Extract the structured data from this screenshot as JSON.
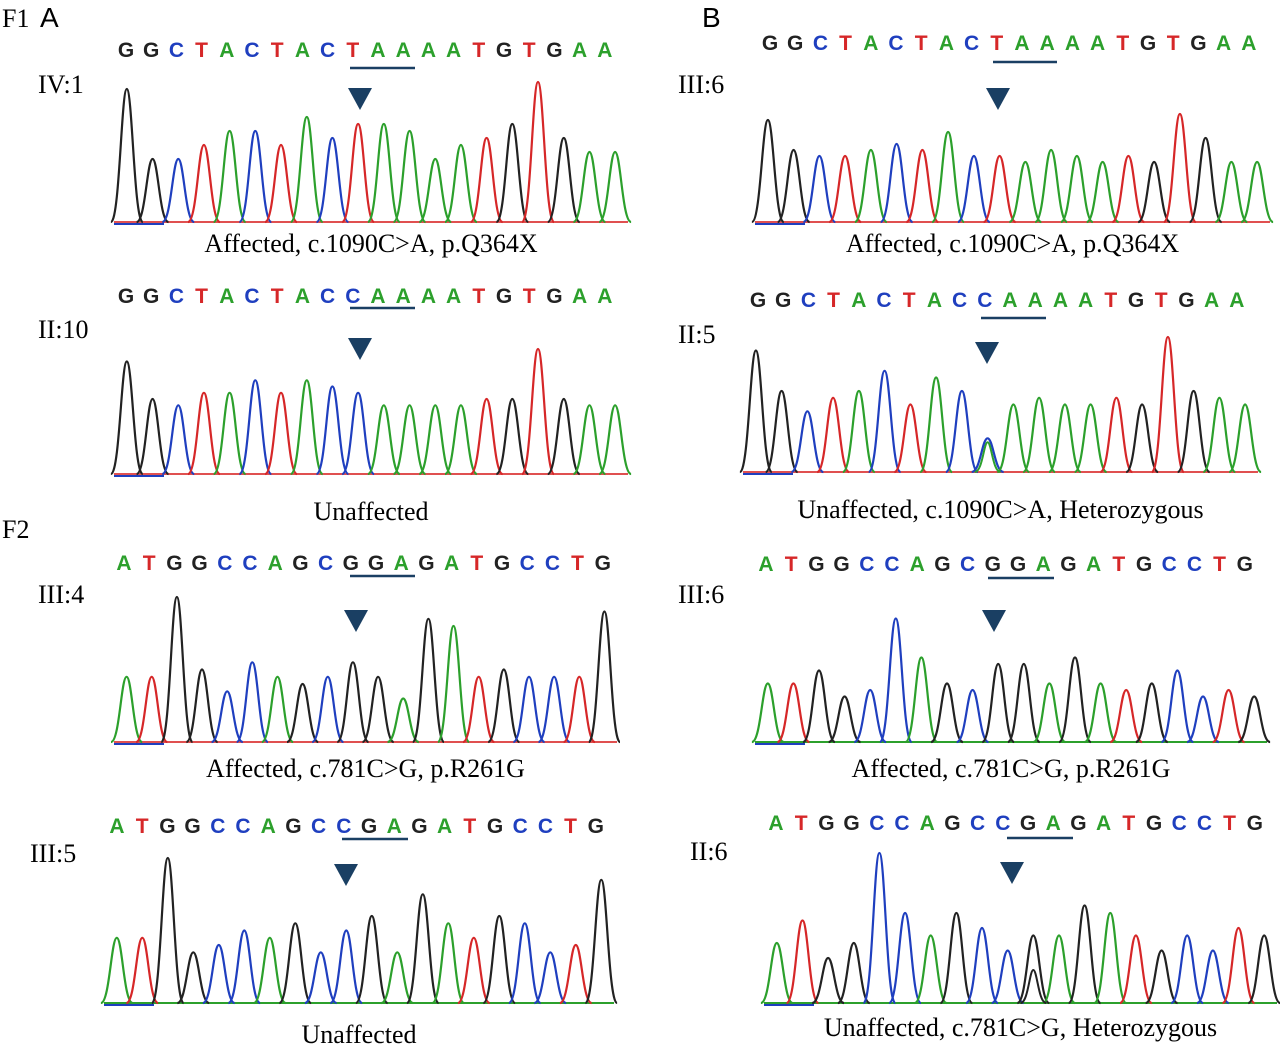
{
  "panels": {
    "a": "A",
    "b": "B"
  },
  "families": {
    "f1": "F1",
    "f2": "F2"
  },
  "colors": {
    "A": "#2ca02c",
    "C": "#1f3fbf",
    "G": "#222222",
    "T": "#d62728",
    "axis": "#e05050",
    "axis_green": "#2ca02c",
    "marker": "#1a3f63",
    "underline": "#1a3f63"
  },
  "traces": [
    {
      "id": "IV:1",
      "sequence": "GGCTACTACTAAAATGTGAA",
      "caption": "Affected, c.1090C>A, p.Q364X",
      "underline": [
        9,
        11
      ],
      "marker_base": 9,
      "peaks": [
        0.95,
        0.45,
        0.45,
        0.55,
        0.65,
        0.65,
        0.55,
        0.75,
        0.6,
        0.7,
        0.7,
        0.65,
        0.45,
        0.55,
        0.6,
        0.7,
        1.0,
        0.6,
        0.5,
        0.5
      ]
    },
    {
      "id": "II:10",
      "sequence": "GGCTACTACCAAAATGTGAA",
      "caption": "Unaffected",
      "underline": [
        9,
        11
      ],
      "marker_base": 9,
      "peaks": [
        0.9,
        0.6,
        0.55,
        0.65,
        0.65,
        0.75,
        0.65,
        0.75,
        0.7,
        0.65,
        0.55,
        0.55,
        0.55,
        0.55,
        0.6,
        0.6,
        1.0,
        0.6,
        0.55,
        0.55
      ]
    },
    {
      "id": "III:6",
      "sequence": "GGCTACTACTAAAATGTGAA",
      "caption": "Affected, c.1090C>A, p.Q364X",
      "underline": [
        9,
        11
      ],
      "marker_base": 9,
      "peaks": [
        0.85,
        0.6,
        0.55,
        0.55,
        0.6,
        0.65,
        0.6,
        0.75,
        0.55,
        0.55,
        0.5,
        0.6,
        0.55,
        0.5,
        0.55,
        0.5,
        0.9,
        0.7,
        0.5,
        0.5
      ]
    },
    {
      "id": "II:5",
      "sequence": "GGCTACTACCAAAATGTGAA",
      "caption": "Unaffected, c.1090C>A, Heterozygous",
      "underline": [
        9,
        11
      ],
      "marker_base": 9,
      "peaks": [
        0.9,
        0.6,
        0.45,
        0.55,
        0.6,
        0.75,
        0.5,
        0.7,
        0.6,
        0.25,
        0.5,
        0.55,
        0.5,
        0.5,
        0.55,
        0.5,
        1.0,
        0.6,
        0.55,
        0.5
      ]
    },
    {
      "id": "III:4",
      "sequence": "ATGGCCAGCGGAGATGCCTG",
      "caption": "Affected, c.781C>G, p.R261G",
      "underline": [
        9,
        11
      ],
      "marker_base": 10,
      "peaks": [
        0.45,
        0.45,
        1.0,
        0.5,
        0.35,
        0.55,
        0.45,
        0.4,
        0.45,
        0.55,
        0.45,
        0.3,
        0.85,
        0.8,
        0.45,
        0.5,
        0.45,
        0.45,
        0.45,
        0.9
      ]
    },
    {
      "id": "III:6",
      "sequence": "ATGGCCAGCGGAGATGCCTG",
      "caption": "Affected, c.781C>G, p.R261G",
      "underline": [
        9,
        11
      ],
      "marker_base": 10,
      "peaks": [
        0.45,
        0.45,
        0.55,
        0.35,
        0.4,
        0.95,
        0.65,
        0.45,
        0.4,
        0.6,
        0.6,
        0.45,
        0.65,
        0.45,
        0.4,
        0.45,
        0.55,
        0.35,
        0.4,
        0.35
      ]
    },
    {
      "id": "III:5",
      "sequence": "ATGGCCAGCCGAGATGCCTG",
      "caption": "Unaffected",
      "underline": [
        9,
        11
      ],
      "marker_base": 10,
      "peaks": [
        0.45,
        0.45,
        1.0,
        0.35,
        0.4,
        0.5,
        0.45,
        0.55,
        0.35,
        0.5,
        0.6,
        0.35,
        0.75,
        0.55,
        0.45,
        0.6,
        0.55,
        0.35,
        0.4,
        0.85
      ]
    },
    {
      "id": "II:6",
      "sequence": "ATGGCCAGCCGAGATGCCTG",
      "caption": "Unaffected, c.781C>G, Heterozygous",
      "underline": [
        9,
        11
      ],
      "marker_base": 10,
      "peaks": [
        0.4,
        0.55,
        0.3,
        0.4,
        1.0,
        0.6,
        0.45,
        0.6,
        0.5,
        0.35,
        0.45,
        0.45,
        0.65,
        0.6,
        0.45,
        0.35,
        0.45,
        0.35,
        0.5,
        0.45
      ]
    }
  ]
}
